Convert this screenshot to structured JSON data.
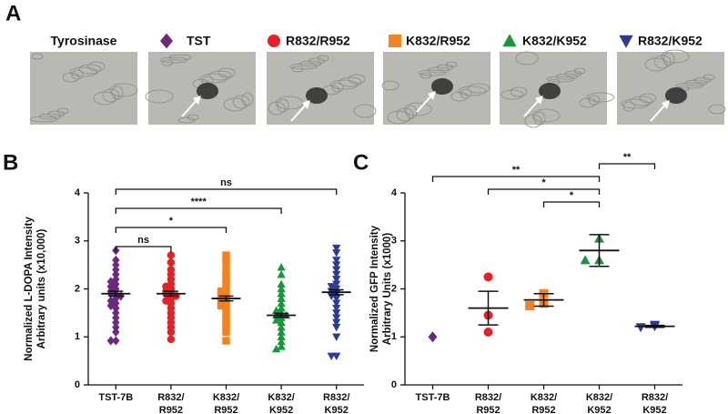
{
  "panel_a": {
    "label": "A",
    "legend": [
      {
        "name": "Tyrosinase"
      },
      {
        "name": "TST",
        "color": "#6b2a7e",
        "marker": "diamond"
      },
      {
        "name": "R832/R952",
        "color": "#e32228",
        "marker": "circle"
      },
      {
        "name": "K832/R952",
        "color": "#f58220",
        "marker": "square"
      },
      {
        "name": "K832/K952",
        "color": "#17963b",
        "marker": "triangle"
      },
      {
        "name": "R832/K952",
        "color": "#2e3b95",
        "marker": "triangle-down"
      }
    ]
  },
  "chart_data": [
    {
      "type": "dot",
      "panel_label": "B",
      "y_label": [
        "Normalized L-DOPA Intensity",
        "Arbitrary units (x10,000)"
      ],
      "categories": [
        [
          "TST-7B"
        ],
        [
          "R832/",
          "R952"
        ],
        [
          "K832/",
          "R952"
        ],
        [
          "K832/",
          "K952"
        ],
        [
          "R832/",
          "K952"
        ]
      ],
      "groups": [
        {
          "color": "#6b2a7e",
          "marker": "diamond",
          "mean": 1.9,
          "sem": 0.05,
          "values": [
            2.8,
            2.6,
            2.5,
            2.4,
            2.3,
            2.2,
            2.15,
            2.1,
            2.05,
            2.0,
            1.95,
            1.9,
            1.9,
            1.85,
            1.8,
            1.75,
            1.7,
            1.65,
            1.6,
            1.5,
            1.4,
            1.3,
            1.2,
            1.1,
            0.92,
            0.92
          ]
        },
        {
          "color": "#e32228",
          "marker": "circle",
          "mean": 1.9,
          "sem": 0.05,
          "values": [
            2.7,
            2.55,
            2.4,
            2.3,
            2.2,
            2.1,
            2.05,
            2.0,
            1.95,
            1.9,
            1.9,
            1.85,
            1.8,
            1.75,
            1.7,
            1.6,
            1.5,
            1.4,
            1.3,
            1.2,
            1.1,
            0.95
          ]
        },
        {
          "color": "#f58220",
          "marker": "square",
          "mean": 1.8,
          "sem": 0.05,
          "values": [
            2.7,
            2.6,
            2.45,
            2.3,
            2.2,
            2.1,
            2.0,
            1.95,
            1.9,
            1.85,
            1.8,
            1.75,
            1.7,
            1.65,
            1.6,
            1.5,
            1.4,
            1.3,
            1.2,
            1.1,
            0.92
          ]
        },
        {
          "color": "#17963b",
          "marker": "triangle",
          "mean": 1.45,
          "sem": 0.04,
          "values": [
            2.45,
            2.3,
            2.1,
            2.0,
            1.9,
            1.8,
            1.7,
            1.6,
            1.55,
            1.5,
            1.45,
            1.45,
            1.4,
            1.35,
            1.3,
            1.2,
            1.1,
            1.0,
            0.9,
            0.8,
            0.75
          ]
        },
        {
          "color": "#2e3b95",
          "marker": "triangle-down",
          "mean": 1.93,
          "sem": 0.05,
          "values": [
            2.85,
            2.75,
            2.6,
            2.5,
            2.4,
            2.3,
            2.2,
            2.1,
            2.05,
            2.0,
            1.95,
            1.9,
            1.85,
            1.8,
            1.7,
            1.6,
            1.5,
            1.4,
            1.3,
            1.2,
            1.0,
            0.6,
            0.6
          ]
        }
      ],
      "ylim": [
        0,
        4
      ],
      "yticks": [
        0,
        1,
        2,
        3,
        4
      ],
      "annotations": [
        {
          "text": "ns",
          "from": 0,
          "to": 4
        },
        {
          "text": "****",
          "from": 0,
          "to": 3
        },
        {
          "text": "*",
          "from": 0,
          "to": 2
        },
        {
          "text": "ns",
          "from": 0,
          "to": 1
        }
      ]
    },
    {
      "type": "dot",
      "panel_label": "C",
      "y_label": [
        "Normalized GFP Intensity",
        "Arbitrary Units  (x1000)"
      ],
      "categories": [
        [
          "TST-7B"
        ],
        [
          "R832/",
          "R952"
        ],
        [
          "K832/",
          "R952"
        ],
        [
          "K832/",
          "K952"
        ],
        [
          "R832/",
          "K952"
        ]
      ],
      "groups": [
        {
          "color": "#6b2a7e",
          "marker": "diamond",
          "values": [
            1.0
          ]
        },
        {
          "color": "#e32228",
          "marker": "circle",
          "mean": 1.6,
          "sem": 0.35,
          "values": [
            2.25,
            1.45,
            1.1
          ]
        },
        {
          "color": "#f58220",
          "marker": "square",
          "mean": 1.77,
          "sem": 0.13,
          "values": [
            1.9,
            1.7,
            1.65
          ]
        },
        {
          "color": "#17963b",
          "marker": "triangle",
          "mean": 2.8,
          "sem": 0.33,
          "values": [
            3.05,
            2.6,
            2.6
          ]
        },
        {
          "color": "#2e3b95",
          "marker": "triangle-down",
          "mean": 1.22,
          "sem": 0.02,
          "values": [
            1.25,
            1.22,
            1.2
          ]
        }
      ],
      "ylim": [
        0,
        4
      ],
      "yticks": [
        0,
        1,
        2,
        3,
        4
      ],
      "annotations": [
        {
          "text": "**",
          "from": 3,
          "to": 4
        },
        {
          "text": "**",
          "from": 0,
          "to": 3
        },
        {
          "text": "*",
          "from": 1,
          "to": 3
        },
        {
          "text": "*",
          "from": 2,
          "to": 3
        }
      ]
    }
  ]
}
